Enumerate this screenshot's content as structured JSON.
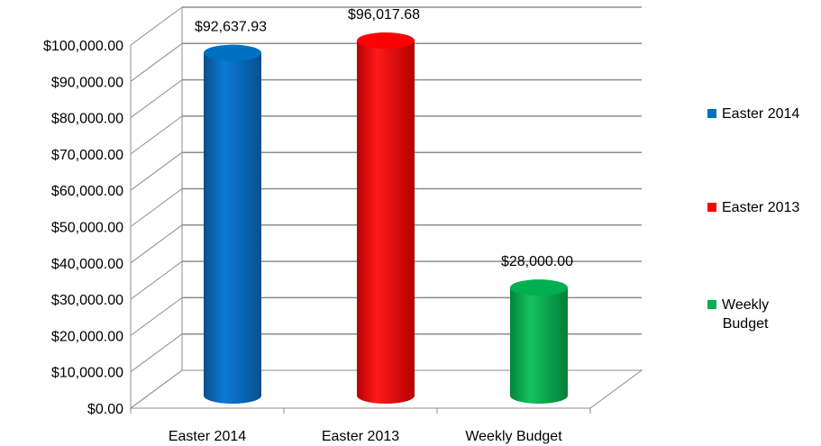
{
  "chart_data": {
    "type": "bar",
    "style": "3d-cylinder",
    "categories": [
      "Easter 2014",
      "Easter 2013",
      "Weekly Budget"
    ],
    "values": [
      92637.93,
      96017.68,
      28000.0
    ],
    "data_labels": [
      "$92,637.93",
      "$96,017.68",
      "$28,000.00"
    ],
    "colors": [
      "#0070C0",
      "#FF0000",
      "#00B050"
    ],
    "ylim": [
      0,
      100000
    ],
    "yticks": [
      "$0.00",
      "$10,000.00",
      "$20,000.00",
      "$30,000.00",
      "$40,000.00",
      "$50,000.00",
      "$60,000.00",
      "$70,000.00",
      "$80,000.00",
      "$90,000.00",
      "$100,000.00"
    ],
    "grid": true,
    "legend_position": "right",
    "legend": [
      {
        "label": "Easter 2014",
        "color": "#0070C0"
      },
      {
        "label": "Easter 2013",
        "color": "#FF0000"
      },
      {
        "label": "Weekly\nBudget",
        "color": "#00B050"
      }
    ]
  }
}
